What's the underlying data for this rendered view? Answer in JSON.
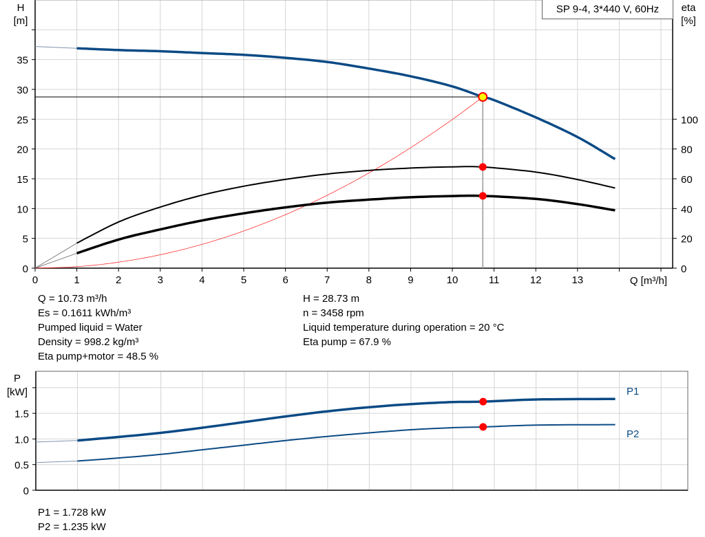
{
  "chart_data": [
    {
      "type": "line",
      "title": "SP 9-4, 3*440 V, 60Hz",
      "xlabel": "Q [m³/h]",
      "ylabel": "H\n[m]",
      "y2label": "eta\n[%]",
      "xlim": [
        0,
        15.28
      ],
      "ylim": [
        0,
        45
      ],
      "y2lim": [
        0,
        180
      ],
      "x_ticks": [
        "0",
        "1",
        "2",
        "3",
        "4",
        "5",
        "6",
        "7",
        "8",
        "9",
        "10",
        "11",
        "12",
        "13"
      ],
      "y_ticks": [
        "0",
        "5",
        "10",
        "15",
        "20",
        "25",
        "30",
        "35"
      ],
      "y2_ticks": [
        "0",
        "20",
        "40",
        "60",
        "80",
        "100"
      ],
      "grid": true,
      "series": [
        {
          "key": "H",
          "axis": "left",
          "color": "#0b4a85",
          "x": [
            0,
            1,
            2,
            3,
            4,
            5,
            6,
            7,
            8,
            9,
            10,
            10.73,
            11,
            12,
            13,
            13.9
          ],
          "y": [
            37.2,
            36.9,
            36.6,
            36.4,
            36.1,
            35.8,
            35.3,
            34.6,
            33.5,
            32.2,
            30.5,
            28.73,
            28.2,
            25.3,
            22.0,
            18.3
          ]
        },
        {
          "key": "eta_pump",
          "axis": "right",
          "color": "#000000",
          "x": [
            1,
            2,
            3,
            4,
            5,
            6,
            7,
            8,
            9,
            10,
            10.73,
            12,
            13,
            13.9
          ],
          "y": [
            16.8,
            31,
            41,
            49,
            55,
            59.6,
            63.2,
            65.6,
            67.2,
            68,
            67.9,
            64.5,
            59.5,
            53.8
          ]
        },
        {
          "key": "eta_total",
          "axis": "right",
          "color": "#000000",
          "x": [
            1,
            2,
            3,
            4,
            5,
            6,
            7,
            8,
            9,
            10,
            10.73,
            12,
            13,
            13.9
          ],
          "y": [
            10,
            19.2,
            26,
            32,
            36.8,
            40.8,
            44,
            46,
            47.6,
            48.4,
            48.5,
            46.5,
            43,
            38.8
          ]
        },
        {
          "key": "system",
          "axis": "left",
          "color": "#ff3030",
          "x": [
            0,
            1,
            2,
            3,
            4,
            5,
            6,
            7,
            8,
            9,
            10,
            10.73
          ],
          "y": [
            0,
            0.25,
            1.0,
            2.25,
            3.99,
            6.24,
            8.98,
            12.23,
            15.97,
            20.21,
            24.95,
            28.73
          ]
        }
      ],
      "duty_point": {
        "Q": 10.73,
        "H": 28.73,
        "eta_pump": 67.9,
        "eta_total": 48.5
      }
    },
    {
      "type": "line",
      "ylabel": "P\n[kW]",
      "xlim": [
        0,
        15.64
      ],
      "ylim": [
        0,
        2.32
      ],
      "y_ticks": [
        "0",
        "0.5",
        "1.0",
        "1.5"
      ],
      "grid": true,
      "series": [
        {
          "name": "P1",
          "color": "#0b4a85",
          "x": [
            0,
            1,
            2,
            3,
            4,
            5,
            6,
            7,
            8,
            9,
            10,
            10.73,
            12,
            13.9
          ],
          "y": [
            0.94,
            0.97,
            1.04,
            1.12,
            1.22,
            1.33,
            1.44,
            1.54,
            1.62,
            1.68,
            1.72,
            1.728,
            1.77,
            1.78
          ]
        },
        {
          "name": "P2",
          "color": "#0b4a85",
          "x": [
            0,
            1,
            2,
            3,
            4,
            5,
            6,
            7,
            8,
            9,
            10,
            10.73,
            12,
            13.9
          ],
          "y": [
            0.54,
            0.57,
            0.63,
            0.7,
            0.79,
            0.88,
            0.97,
            1.05,
            1.12,
            1.18,
            1.22,
            1.235,
            1.27,
            1.28
          ]
        }
      ]
    }
  ],
  "info_left": [
    "Q = 10.73 m³/h",
    "Es = 0.1611 kWh/m³",
    "Pumped liquid = Water",
    "Density = 998.2 kg/m³",
    "Eta pump+motor = 48.5 %"
  ],
  "info_right": [
    "H = 28.73 m",
    "n = 3458 rpm",
    "Liquid temperature during operation = 20 °C",
    "Eta pump = 67.9 %"
  ],
  "power_info": [
    "P1 = 1.728 kW",
    "P2 = 1.235 kW"
  ],
  "colors": {
    "curve": "#0b4a85",
    "marker": "#ff0000",
    "duty": "#ffff00",
    "grid": "#d4d4d4"
  }
}
